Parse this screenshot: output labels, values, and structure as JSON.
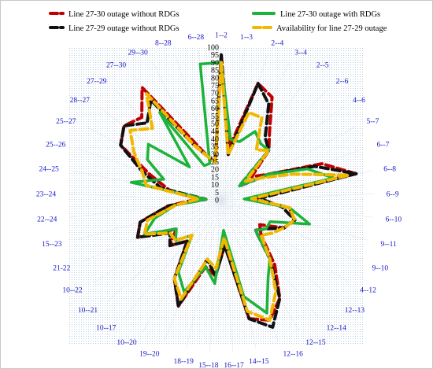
{
  "chart_data": {
    "type": "radar",
    "title": "",
    "rlim": [
      0,
      100
    ],
    "r_ticks": [
      0,
      5,
      10,
      15,
      20,
      25,
      30,
      35,
      40,
      45,
      50,
      55,
      60,
      65,
      70,
      75,
      80,
      85,
      90,
      95,
      100
    ],
    "grid": true,
    "legend_placement": "top",
    "categories": [
      "1--2",
      "1--3",
      "2--4",
      "3--4",
      "2--5",
      "2--6",
      "4--6",
      "5--7",
      "6--7",
      "6--8",
      "6--9",
      "6--10",
      "9--11",
      "9--10",
      "4--12",
      "12--13",
      "12--14",
      "12--15",
      "12--16",
      "14--15",
      "16--17",
      "15--18",
      "18--19",
      "19--20",
      "10--20",
      "10--17",
      "10--21",
      "10--22",
      "21-22",
      "15--23",
      "22--24",
      "23--24",
      "24--25",
      "25--26",
      "25--27",
      "28--27",
      "27--29",
      "27--30",
      "29--30",
      "8--28",
      "6--28"
    ],
    "series": [
      {
        "name": "Line 27-30 outage without RDGs",
        "color": "#c00000",
        "dash": "dashed",
        "values": [
          95,
          35,
          80,
          75,
          55,
          45,
          25,
          35,
          70,
          90,
          20,
          45,
          50,
          45,
          30,
          35,
          55,
          75,
          85,
          80,
          30,
          50,
          45,
          75,
          60,
          35,
          45,
          35,
          60,
          55,
          35,
          15,
          35,
          50,
          75,
          80,
          75,
          90,
          45,
          30,
          25
        ]
      },
      {
        "name": "Line 27-29 outage without RDGs",
        "color": "#111111",
        "dash": "dashed",
        "values": [
          95,
          30,
          80,
          70,
          50,
          45,
          15,
          35,
          65,
          90,
          25,
          40,
          50,
          45,
          35,
          30,
          50,
          75,
          90,
          80,
          30,
          50,
          40,
          75,
          60,
          35,
          45,
          40,
          60,
          55,
          35,
          10,
          40,
          55,
          75,
          80,
          70,
          80,
          40,
          30,
          25
        ]
      },
      {
        "name": "Line 27-30 outage with RDGs",
        "color": "#1db33a",
        "dash": "solid",
        "values": [
          90,
          40,
          40,
          50,
          45,
          45,
          15,
          35,
          60,
          75,
          15,
          45,
          60,
          35,
          35,
          30,
          50,
          60,
          80,
          65,
          20,
          55,
          45,
          65,
          55,
          30,
          40,
          35,
          55,
          45,
          30,
          10,
          60,
          40,
          55,
          60,
          30,
          70,
          25,
          25,
          90
        ]
      },
      {
        "name": "Availability for line 27-29 outage",
        "color": "#f2b800",
        "dash": "dashed",
        "values": [
          90,
          30,
          60,
          60,
          40,
          45,
          20,
          30,
          50,
          85,
          20,
          45,
          50,
          45,
          40,
          35,
          50,
          70,
          85,
          75,
          25,
          45,
          40,
          70,
          60,
          30,
          40,
          40,
          55,
          50,
          30,
          15,
          50,
          55,
          65,
          75,
          65,
          85,
          40,
          30,
          25
        ]
      }
    ]
  }
}
